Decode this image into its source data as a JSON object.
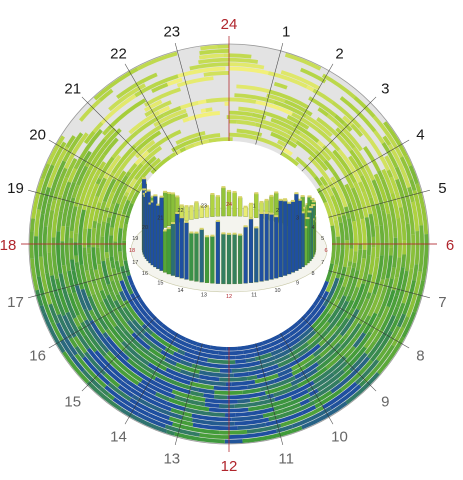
{
  "chart_data": {
    "type": "heatmap",
    "layout": "polar-24-hour-clock",
    "hour_labels": [
      "24",
      "1",
      "2",
      "3",
      "4",
      "5",
      "6",
      "7",
      "8",
      "9",
      "10",
      "11",
      "12",
      "13",
      "14",
      "15",
      "16",
      "17",
      "18",
      "19",
      "20",
      "21",
      "22",
      "23"
    ],
    "highlighted_hours": [
      "24",
      "6",
      "12",
      "18"
    ],
    "rings": 22,
    "colors": {
      "background": "#e3e3e3",
      "low": "#f2f07a",
      "mid": "#a8cf3a",
      "high": "#3f9a3a",
      "peak": "#1f4fa0",
      "label": "#1a1a1a",
      "label_highlight": "#b0252c",
      "label_lower": "#666666"
    },
    "inset": {
      "type": "3d-radial-bars",
      "hour_labels": [
        "24",
        "1",
        "2",
        "3",
        "4",
        "5",
        "6",
        "7",
        "8",
        "9",
        "10",
        "11",
        "12",
        "13",
        "14",
        "15",
        "16",
        "17",
        "18",
        "19",
        "20",
        "21",
        "22",
        "23"
      ]
    }
  }
}
